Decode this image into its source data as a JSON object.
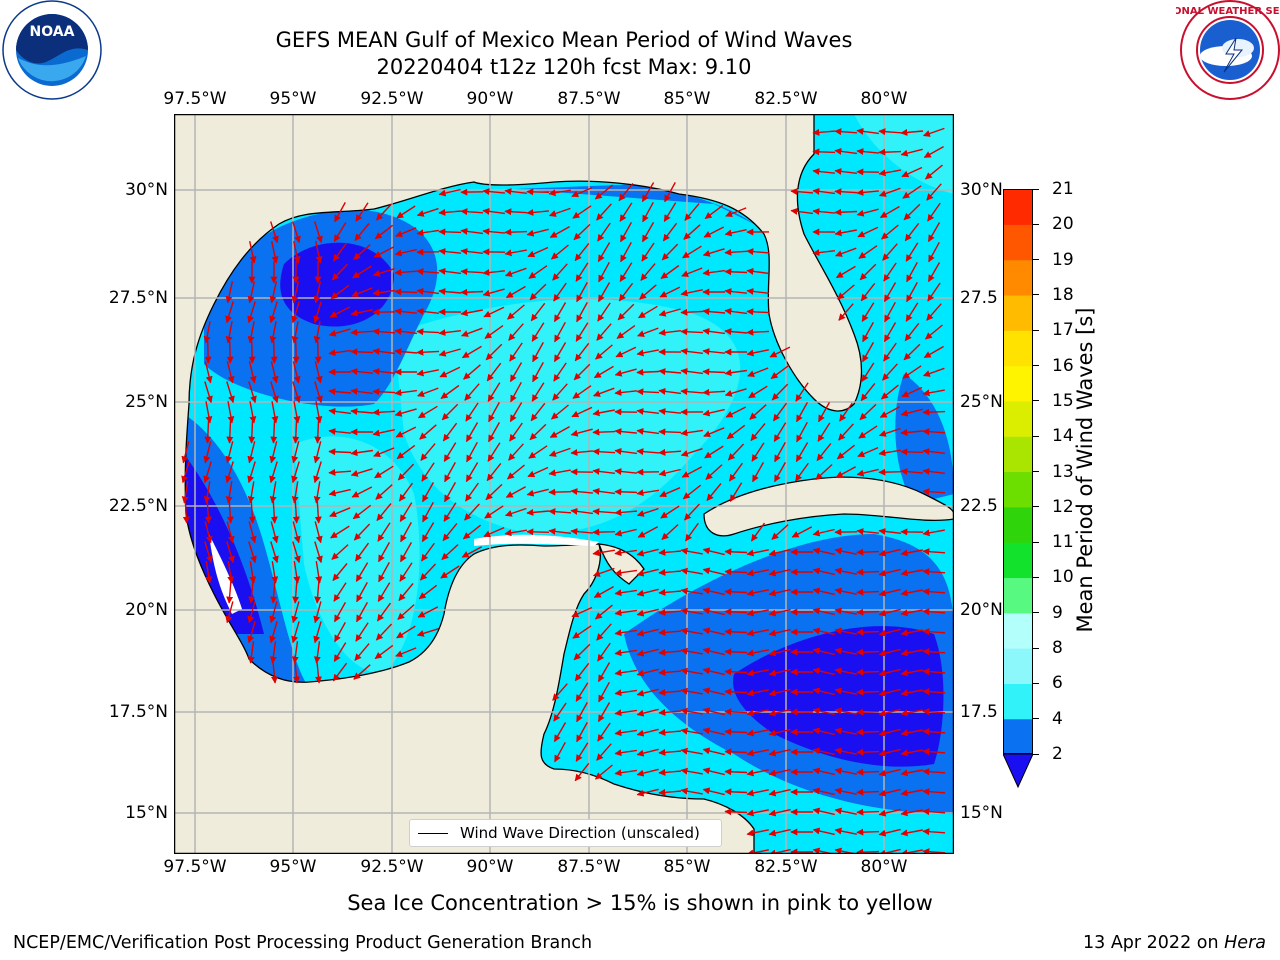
{
  "header": {
    "title_line1": "GEFS MEAN Gulf of Mexico Mean Period of Wind Waves",
    "title_line2": "20220404 t12z 120h fcst   Max: 9.10"
  },
  "logos": {
    "noaa": "NOAA",
    "noaa_ring": "NATIONAL OCEANIC AND ATMOSPHERIC ADMINISTRATION · U.S. DEPARTMENT OF COMMERCE",
    "nws_ring": "NATIONAL WEATHER SERVICE"
  },
  "map": {
    "lon_labels": [
      "97.5°W",
      "95°W",
      "92.5°W",
      "90°W",
      "87.5°W",
      "85°W",
      "82.5°W",
      "80°W"
    ],
    "lat_labels_left": [
      "30°N",
      "27.5°N",
      "25°N",
      "22.5°N",
      "20°N",
      "17.5°N",
      "15°N"
    ],
    "lat_labels_right": [
      "30°N",
      "27.5",
      "25°N",
      "22.5",
      "20°N",
      "17.5",
      "15°N"
    ],
    "legend_label": "Wind Wave Direction (unscaled)",
    "land_color": "#efecdc",
    "grid_color": "#b4b4b4"
  },
  "colorbar": {
    "title": "Mean Period of Wind Waves [s]",
    "tick_labels": [
      "2",
      "4",
      "6",
      "8",
      "9",
      "10",
      "11",
      "12",
      "13",
      "14",
      "15",
      "16",
      "17",
      "18",
      "19",
      "20",
      "21"
    ],
    "colors": [
      "#0a71f0",
      "#00d2ff",
      "#30f2f8",
      "#8cf8fc",
      "#b3fffb",
      "#57f980",
      "#12e22b",
      "#30d40a",
      "#6cde00",
      "#a9e500",
      "#dbee00",
      "#fef400",
      "#ffe200",
      "#ffbb00",
      "#ff8a00",
      "#ff5700",
      "#ff2a00",
      "#fe0000"
    ],
    "underflow_color": "#1a0ff0"
  },
  "footer": {
    "caption": "Sea Ice Concentration > 15% is shown in pink to yellow",
    "left": "NCEP/EMC/Verification Post Processing Product Generation Branch",
    "right_date": "13 Apr 2022 on ",
    "right_host": "Hera"
  }
}
